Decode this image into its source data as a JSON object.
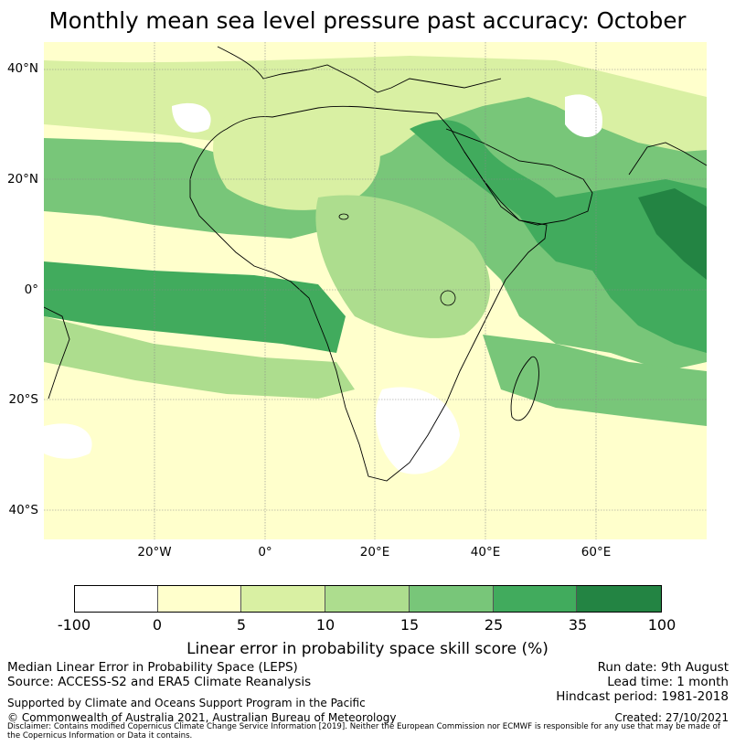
{
  "title": "Monthly mean sea level pressure past accuracy: October",
  "map": {
    "lat_labels": [
      "40°N",
      "20°N",
      "0°",
      "20°S",
      "40°S"
    ],
    "lon_labels": [
      "20°W",
      "0°",
      "20°E",
      "40°E",
      "60°E"
    ],
    "colors": {
      "ocean_base": "#ffffcc",
      "bin_0": "#ffffff",
      "bin_1": "#ffffcc",
      "bin_2": "#d9f0a3",
      "bin_3": "#addd8e",
      "bin_4": "#78c679",
      "bin_5": "#41ab5d",
      "bin_6": "#238443",
      "coast": "#000000",
      "grid": "#888888"
    }
  },
  "colorbar": {
    "ticks": [
      "-100",
      "0",
      "5",
      "10",
      "15",
      "25",
      "35",
      "100"
    ],
    "colors": [
      "#ffffff",
      "#ffffcc",
      "#d9f0a3",
      "#addd8e",
      "#78c679",
      "#41ab5d",
      "#238443"
    ],
    "label": "Linear error in probability space skill score (%)"
  },
  "info": {
    "left1": "Median Linear Error in Probability Space (LEPS)",
    "left2": "Source: ACCESS-S2 and ERA5 Climate Reanalysis",
    "right1": "Run date: 9th August",
    "right2": "Lead time: 1 month",
    "right3": "Hindcast period: 1981-2018",
    "supported": "Supported by Climate and Oceans Support Program in the Pacific",
    "copyright": "© Commonwealth of Australia 2021, Australian Bureau of Meteorology",
    "created": "Created: 27/10/2021",
    "disclaimer": "Disclaimer: Contains modified Copernicus Climate Change Service Information [2019]. Neither the European Commission nor ECMWF is responsible for any use that may be made of the Copernicus Information or Data it contains."
  }
}
